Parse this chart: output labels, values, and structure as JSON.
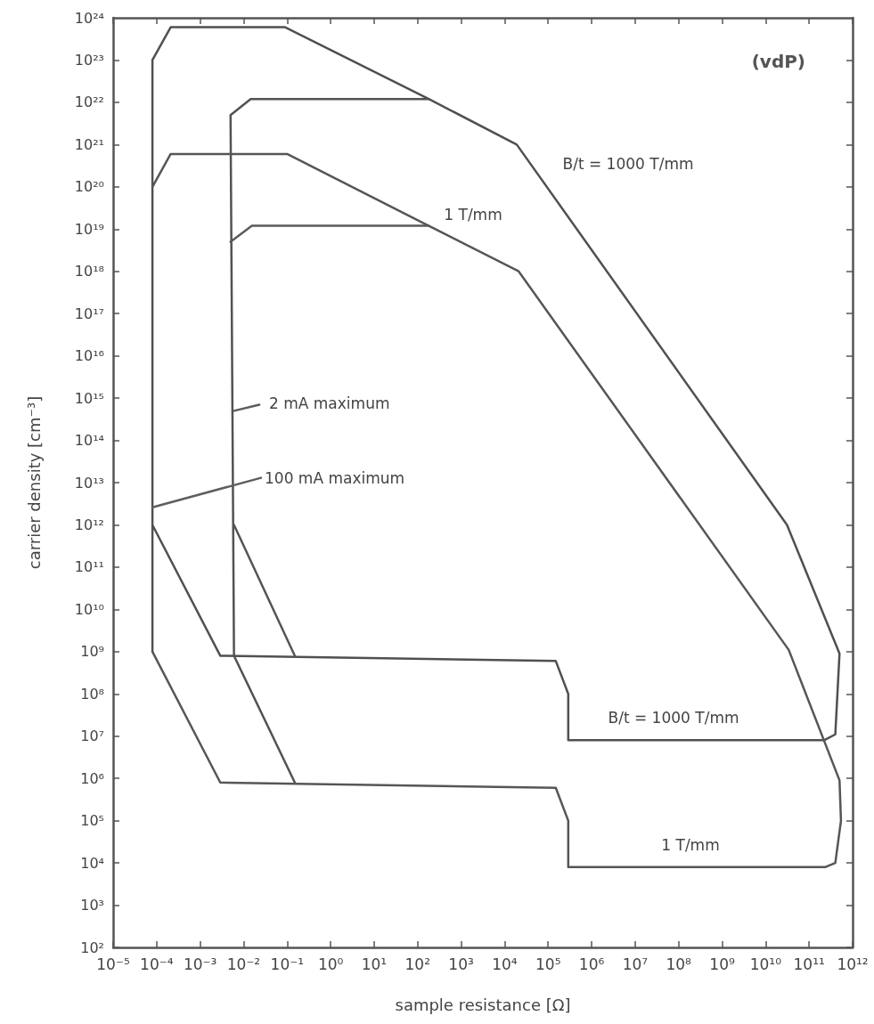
{
  "chart_data": {
    "type": "line",
    "title": "(vdP)",
    "xlabel": "sample resistance [Ω]",
    "ylabel": "carrier density [cm⁻³]",
    "log": "xy",
    "grid": false,
    "marker": "none",
    "line_style": "solid",
    "xlim": [
      1e-05,
      1000000000000.0
    ],
    "xticks": [
      {
        "value": 1e-05,
        "label": "10⁻⁵"
      },
      {
        "value": 0.0001,
        "label": "10⁻⁴"
      },
      {
        "value": 0.001,
        "label": "10⁻³"
      },
      {
        "value": 0.01,
        "label": "10⁻²"
      },
      {
        "value": 0.1,
        "label": "10⁻¹"
      },
      {
        "value": 1,
        "label": "10⁰"
      },
      {
        "value": 10,
        "label": "10¹"
      },
      {
        "value": 100,
        "label": "10²"
      },
      {
        "value": 1000.0,
        "label": "10³"
      },
      {
        "value": 10000.0,
        "label": "10⁴"
      },
      {
        "value": 100000.0,
        "label": "10⁵"
      },
      {
        "value": 1000000.0,
        "label": "10⁶"
      },
      {
        "value": 10000000.0,
        "label": "10⁷"
      },
      {
        "value": 100000000.0,
        "label": "10⁸"
      },
      {
        "value": 1000000000.0,
        "label": "10⁹"
      },
      {
        "value": 10000000000.0,
        "label": "10¹⁰"
      },
      {
        "value": 100000000000.0,
        "label": "10¹¹"
      },
      {
        "value": 1000000000000.0,
        "label": "10¹²"
      }
    ],
    "ylim": [
      100.0,
      1e+24
    ],
    "yticks": [
      {
        "value": 100.0,
        "label": "10²"
      },
      {
        "value": 1000.0,
        "label": "10³"
      },
      {
        "value": 10000.0,
        "label": "10⁴"
      },
      {
        "value": 100000.0,
        "label": "10⁵"
      },
      {
        "value": 1000000.0,
        "label": "10⁶"
      },
      {
        "value": 10000000.0,
        "label": "10⁷"
      },
      {
        "value": 100000000.0,
        "label": "10⁸"
      },
      {
        "value": 1000000000.0,
        "label": "10⁹"
      },
      {
        "value": 10000000000.0,
        "label": "10¹⁰"
      },
      {
        "value": 100000000000.0,
        "label": "10¹¹"
      },
      {
        "value": 1000000000000.0,
        "label": "10¹²"
      },
      {
        "value": 10000000000000.0,
        "label": "10¹³"
      },
      {
        "value": 100000000000000.0,
        "label": "10¹⁴"
      },
      {
        "value": 1000000000000000.0,
        "label": "10¹⁵"
      },
      {
        "value": 1e+16,
        "label": "10¹⁶"
      },
      {
        "value": 1e+17,
        "label": "10¹⁷"
      },
      {
        "value": 1e+18,
        "label": "10¹⁸"
      },
      {
        "value": 1e+19,
        "label": "10¹⁹"
      },
      {
        "value": 1e+20,
        "label": "10²⁰"
      },
      {
        "value": 1e+21,
        "label": "10²¹"
      },
      {
        "value": 1e+22,
        "label": "10²²"
      },
      {
        "value": 1e+23,
        "label": "10²³"
      },
      {
        "value": 1e+24,
        "label": "10²⁴"
      }
    ],
    "series": [
      {
        "color": "#505050",
        "x": [
          8e-05,
          8e-05,
          0.00021,
          0.09,
          180,
          19000.0,
          31000000000.0,
          500000000000.0,
          400000000000.0,
          220000000000.0,
          290000.0,
          290000.0,
          150000.0,
          0.0029,
          8e-05
        ],
        "values": [
          1000000000.0,
          1e+23,
          6e+23,
          6e+23,
          1.2e+22,
          1e+21,
          1000000000000.0,
          900000000.0,
          11000000.0,
          8000000.0,
          8000000.0,
          100000000.0,
          600000000.0,
          800000000.0,
          1000000000000.0
        ]
      },
      {
        "color": "#525252",
        "x": [
          0.15,
          0.006,
          0.005,
          0.0145,
          180
        ],
        "values": [
          800000.0,
          800000000.0,
          5e+21,
          1.2e+22,
          1.2e+22
        ]
      },
      {
        "color": "#545454",
        "x": [
          0.006,
          0.15
        ],
        "values": [
          1000000000000.0,
          800000000.0
        ]
      },
      {
        "color": "#565656",
        "x": [
          8e-05,
          0.00021,
          0.1,
          180,
          21000.0,
          34000000000.0,
          500000000000.0,
          540000000000.0,
          400000000000.0,
          240000000000.0,
          290000.0,
          290000.0,
          150000.0,
          0.0029,
          8e-05
        ],
        "values": [
          1e+20,
          6e+20,
          6e+20,
          1.2e+19,
          1e+18,
          1100000000.0,
          900000.0,
          100000.0,
          10000.0,
          8000.0,
          8000.0,
          100000.0,
          600000.0,
          800000.0,
          1000000000.0
        ]
      },
      {
        "color": "#5a5a5a",
        "x": [
          0.005,
          0.0155,
          180
        ],
        "values": [
          5e+18,
          1.2e+19,
          1.2e+19
        ]
      },
      {
        "color": "#5c5c5c",
        "x": [
          0.006,
          0.023
        ],
        "values": [
          500000000000000.0,
          700000000000000.0
        ]
      },
      {
        "color": "#5e5e5e",
        "x": [
          8e-05,
          0.025
        ],
        "values": [
          2600000000000.0,
          13000000000000.0
        ]
      }
    ],
    "annotations": [
      "B/t = 1000 T/mm",
      "1 T/mm",
      "2 mA maximum",
      "100 mA maximum",
      "B/t = 1000 T/mm",
      "1 T/mm"
    ]
  }
}
